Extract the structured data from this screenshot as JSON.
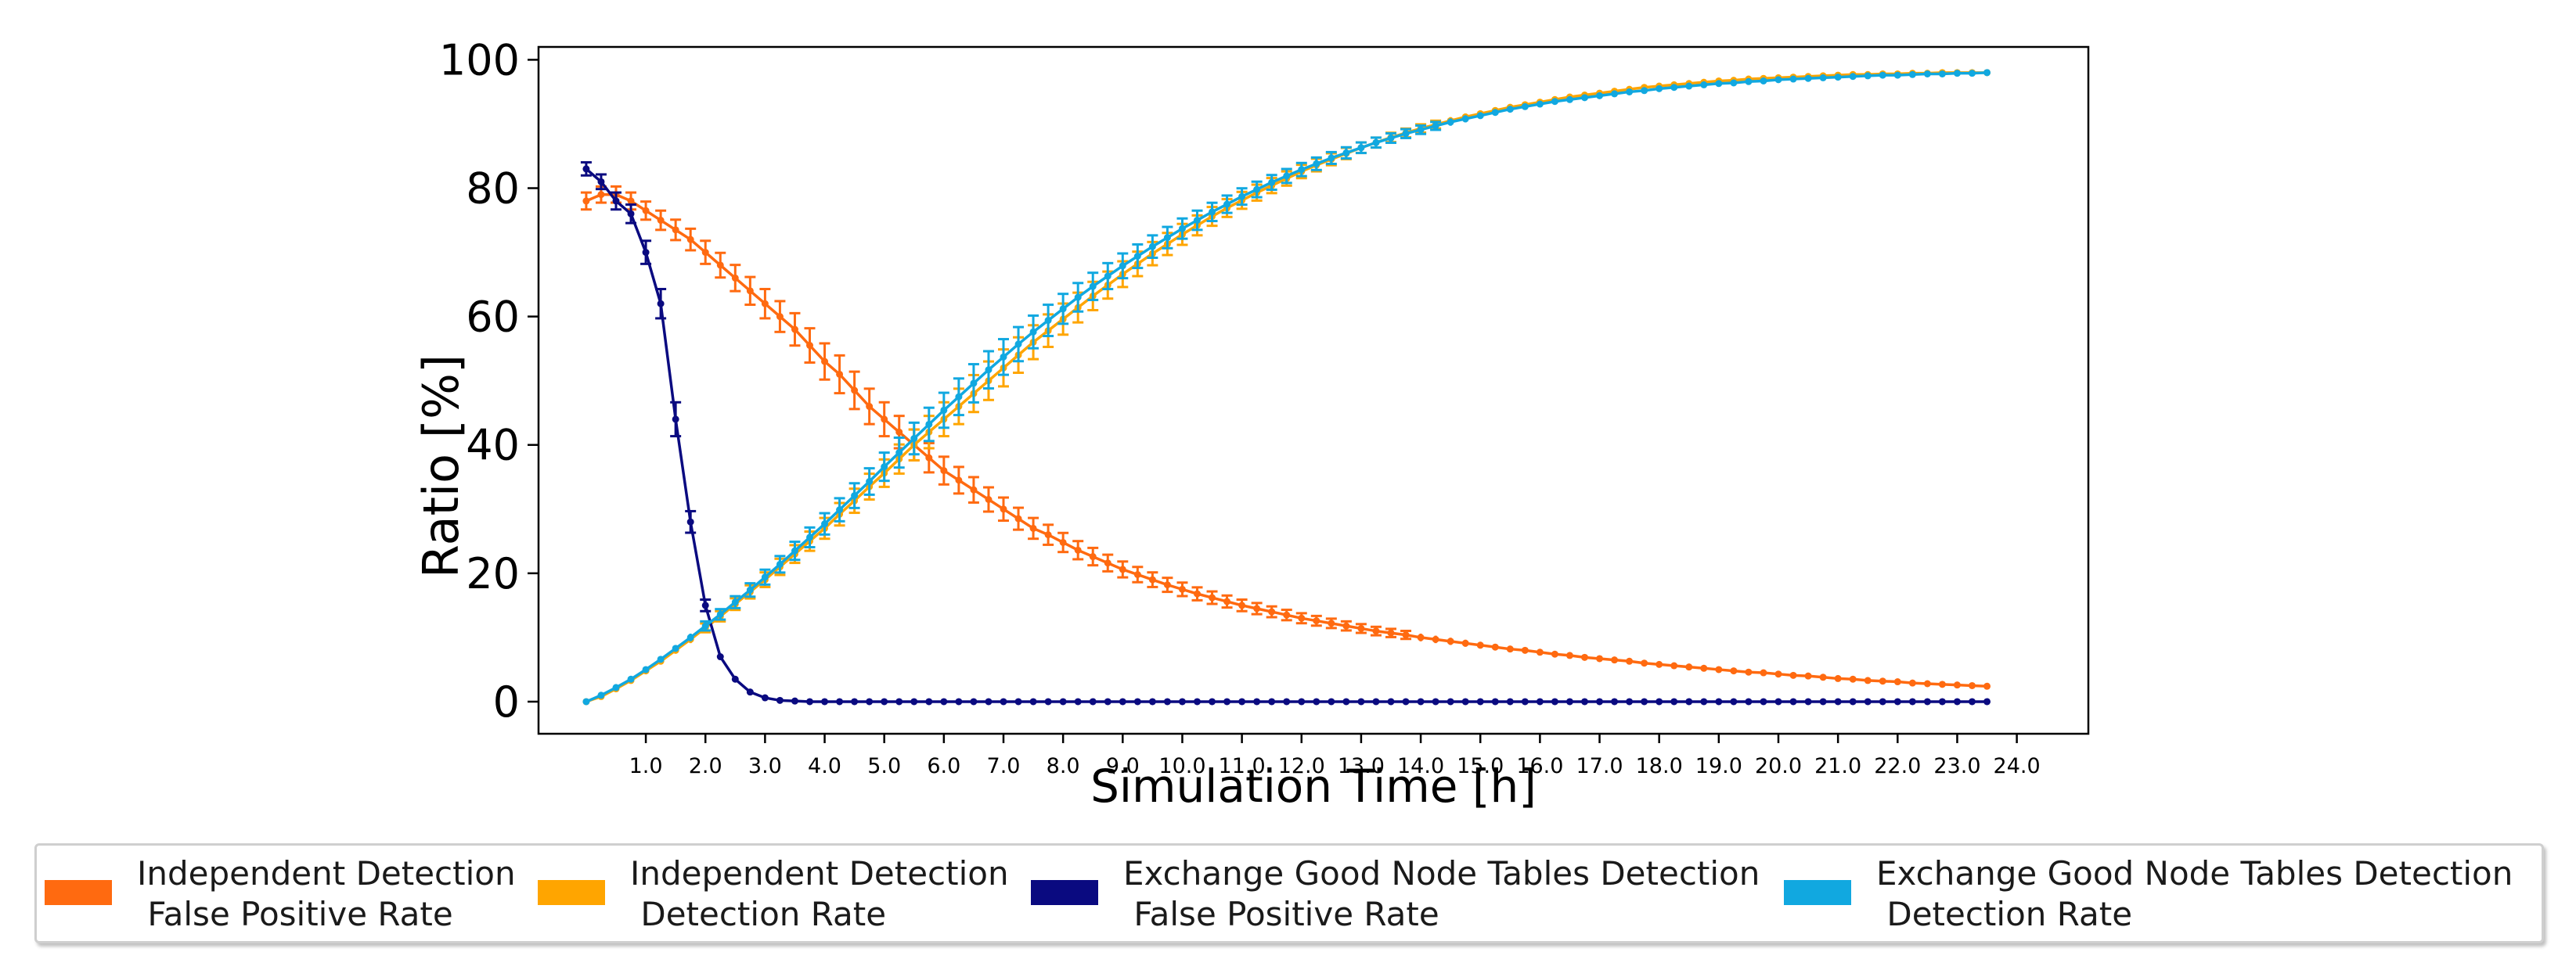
{
  "chart_data": {
    "type": "line",
    "title": "",
    "xlabel": "Simulation Time [h]",
    "ylabel": "Ratio [%]",
    "xlim": [
      -0.8,
      25.2
    ],
    "ylim": [
      -5,
      102
    ],
    "yticks": [
      0,
      20,
      40,
      60,
      80,
      100
    ],
    "ytick_labels": [
      "0",
      "20",
      "40",
      "60",
      "80",
      "100"
    ],
    "xticks": [
      1,
      2,
      3,
      4,
      5,
      6,
      7,
      8,
      9,
      10,
      11,
      12,
      13,
      14,
      15,
      16,
      17,
      18,
      19,
      20,
      21,
      22,
      23,
      24
    ],
    "xtick_labels": [
      "1.0",
      "2.0",
      "3.0",
      "4.0",
      "5.0",
      "6.0",
      "7.0",
      "8.0",
      "9.0",
      "10.0",
      "11.0",
      "12.0",
      "13.0",
      "14.0",
      "15.0",
      "16.0",
      "17.0",
      "18.0",
      "19.0",
      "20.0",
      "21.0",
      "22.0",
      "23.0",
      "24.0"
    ],
    "grid": false,
    "x_step_hours": 0.25,
    "series": [
      {
        "name": "Independent Detection False Positive Rate",
        "color": "#FF6A10",
        "values": [
          78,
          79,
          79,
          78,
          76.5,
          75,
          73.5,
          72,
          70,
          68,
          66,
          64,
          62,
          60,
          58,
          55.5,
          53,
          51,
          48.5,
          46,
          44,
          42,
          40,
          38,
          36,
          34.5,
          33,
          31.5,
          30,
          28.5,
          27,
          26,
          24.8,
          23.6,
          22.6,
          21.6,
          20.6,
          19.8,
          19,
          18.2,
          17.5,
          16.8,
          16.2,
          15.6,
          15,
          14.5,
          14,
          13.5,
          13,
          12.6,
          12.2,
          11.8,
          11.4,
          11,
          10.7,
          10.4,
          10,
          9.7,
          9.4,
          9.1,
          8.8,
          8.5,
          8.2,
          8,
          7.7,
          7.4,
          7.2,
          6.9,
          6.7,
          6.5,
          6.3,
          6,
          5.8,
          5.6,
          5.4,
          5.2,
          5,
          4.8,
          4.6,
          4.5,
          4.3,
          4.1,
          4,
          3.8,
          3.6,
          3.5,
          3.3,
          3.2,
          3.1,
          2.9,
          2.8,
          2.7,
          2.6,
          2.5,
          2.4
        ]
      },
      {
        "name": "Independent Detection Detection Rate",
        "color": "#FFA500",
        "values": [
          0,
          0.8,
          2,
          3.3,
          4.8,
          6.3,
          8,
          9.7,
          11.5,
          13.3,
          15.2,
          17.1,
          19,
          21,
          23,
          25,
          27,
          29.2,
          31.3,
          33.5,
          35.6,
          37.8,
          40,
          42,
          44,
          46,
          48,
          50,
          52,
          54,
          56,
          57.8,
          59.6,
          61.4,
          63.2,
          64.9,
          66.6,
          68.2,
          69.8,
          71.3,
          72.8,
          74.2,
          75.6,
          76.9,
          78.1,
          79.3,
          80.4,
          81.5,
          82.6,
          83.6,
          84.5,
          85.4,
          86.3,
          87.1,
          87.9,
          88.6,
          89.3,
          89.9,
          90.5,
          91.1,
          91.6,
          92.1,
          92.6,
          93,
          93.4,
          93.8,
          94.2,
          94.5,
          94.8,
          95.1,
          95.4,
          95.7,
          95.9,
          96.1,
          96.3,
          96.5,
          96.7,
          96.8,
          97,
          97.1,
          97.2,
          97.3,
          97.4,
          97.5,
          97.6,
          97.7,
          97.7,
          97.8,
          97.8,
          97.9,
          97.9,
          98,
          98,
          98,
          98
        ]
      },
      {
        "name": "Exchange Good Node Tables Detection False Positive Rate",
        "color": "#0A0A80",
        "values": [
          83,
          81,
          78,
          76,
          70,
          62,
          44,
          28,
          15,
          7,
          3.5,
          1.5,
          0.6,
          0.2,
          0.1,
          0,
          0,
          0,
          0,
          0,
          0,
          0,
          0,
          0,
          0,
          0,
          0,
          0,
          0,
          0,
          0,
          0,
          0,
          0,
          0,
          0,
          0,
          0,
          0,
          0,
          0,
          0,
          0,
          0,
          0,
          0,
          0,
          0,
          0,
          0,
          0,
          0,
          0,
          0,
          0,
          0,
          0,
          0,
          0,
          0,
          0,
          0,
          0,
          0,
          0,
          0,
          0,
          0,
          0,
          0,
          0,
          0,
          0,
          0,
          0,
          0,
          0,
          0,
          0,
          0,
          0,
          0,
          0,
          0,
          0,
          0,
          0,
          0,
          0,
          0,
          0,
          0,
          0,
          0,
          0
        ]
      },
      {
        "name": "Exchange Good Node Tables Detection Detection Rate",
        "color": "#11A8E0",
        "values": [
          0,
          1,
          2.2,
          3.5,
          5,
          6.6,
          8.3,
          10,
          11.8,
          13.6,
          15.5,
          17.4,
          19.4,
          21.4,
          23.5,
          25.6,
          27.7,
          29.9,
          32.1,
          34.3,
          36.6,
          38.8,
          41,
          43.2,
          45.4,
          47.5,
          49.6,
          51.7,
          53.7,
          55.7,
          57.6,
          59.4,
          61.2,
          63,
          64.7,
          66.3,
          67.9,
          69.4,
          70.9,
          72.3,
          73.7,
          75,
          76.3,
          77.5,
          78.7,
          79.8,
          80.9,
          81.9,
          82.9,
          83.8,
          84.7,
          85.5,
          86.3,
          87.1,
          87.8,
          88.5,
          89.1,
          89.7,
          90.3,
          90.8,
          91.3,
          91.8,
          92.3,
          92.7,
          93.1,
          93.5,
          93.8,
          94.1,
          94.4,
          94.7,
          95,
          95.2,
          95.5,
          95.7,
          95.9,
          96.1,
          96.3,
          96.4,
          96.6,
          96.7,
          96.9,
          97,
          97.1,
          97.2,
          97.3,
          97.4,
          97.5,
          97.6,
          97.6,
          97.7,
          97.8,
          97.8,
          97.9,
          97.9,
          98
        ]
      }
    ]
  },
  "legend": {
    "items": [
      {
        "line1": "Independent Detection",
        "line2": " False Positive Rate",
        "color": "#FF6A10"
      },
      {
        "line1": "Independent Detection",
        "line2": " Detection Rate",
        "color": "#FFA500"
      },
      {
        "line1": "Exchange Good Node Tables Detection",
        "line2": " False Positive Rate",
        "color": "#0A0A80"
      },
      {
        "line1": "Exchange Good Node Tables Detection",
        "line2": " Detection Rate",
        "color": "#11A8E0"
      }
    ]
  }
}
